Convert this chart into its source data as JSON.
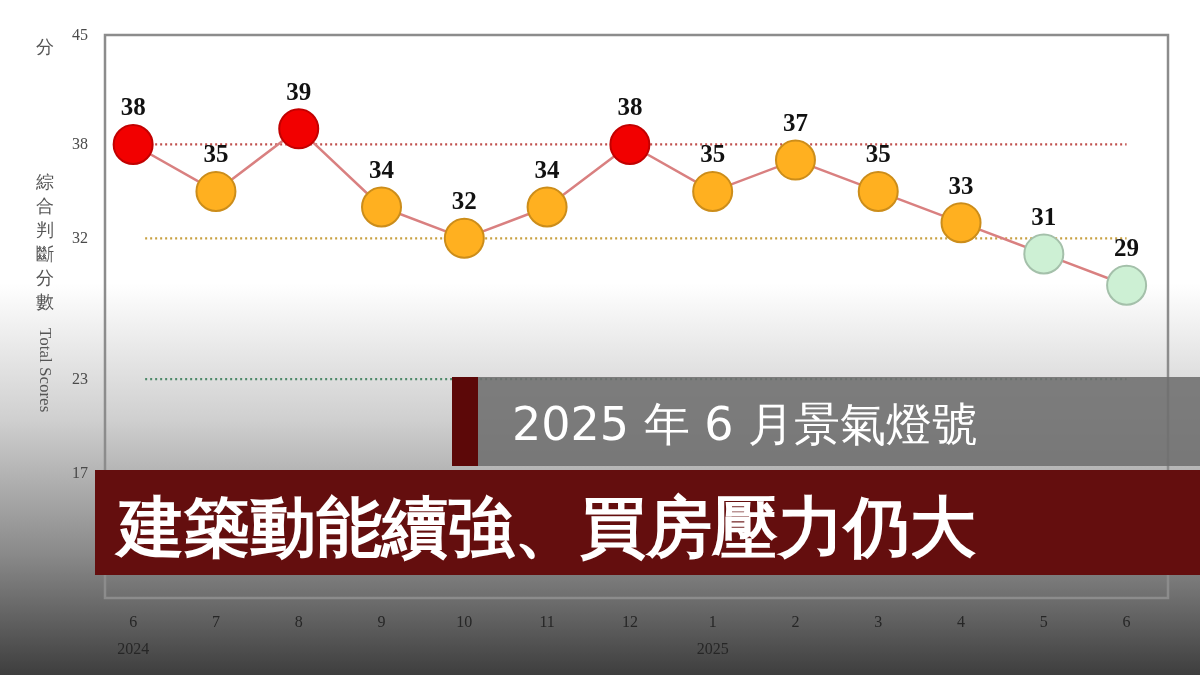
{
  "chart_data": {
    "type": "line",
    "title": "2025 年 6 月景氣燈號",
    "subtitle": "建築動能續強、買房壓力仍大",
    "ylabel": "綜合判斷分數 Total Scores",
    "annotations": [
      "分"
    ],
    "categories": [
      "6\n2024",
      "7",
      "8",
      "9",
      "10",
      "11",
      "12",
      "1\n2025",
      "2",
      "3",
      "4",
      "5",
      "6"
    ],
    "series": [
      {
        "color": "#d98080",
        "colors": [
          "#f20000",
          "#ffb020",
          "#f20000",
          "#ffb020",
          "#ffb020",
          "#ffb020",
          "#f20000",
          "#ffb020",
          "#ffb020",
          "#ffb020",
          "#ffb020",
          "#cdf0d4",
          "#cdf0d4"
        ],
        "values": [
          38,
          35,
          39,
          34,
          32,
          34,
          38,
          35,
          37,
          35,
          33,
          31,
          29
        ]
      }
    ],
    "ylim": [
      9,
      45
    ],
    "yticks": [
      17,
      23,
      32,
      38,
      45
    ],
    "ref_lines": [
      {
        "axis": "y",
        "value": 38,
        "color": "#c0504d",
        "line_style": "dotted"
      },
      {
        "axis": "y",
        "value": 32,
        "color": "#c8a040",
        "line_style": "dotted"
      },
      {
        "axis": "y",
        "value": 23,
        "color": "#4f8a6a",
        "line_style": "dotted"
      }
    ],
    "data_labels": true,
    "marker": "circle",
    "line_style": "solid"
  }
}
